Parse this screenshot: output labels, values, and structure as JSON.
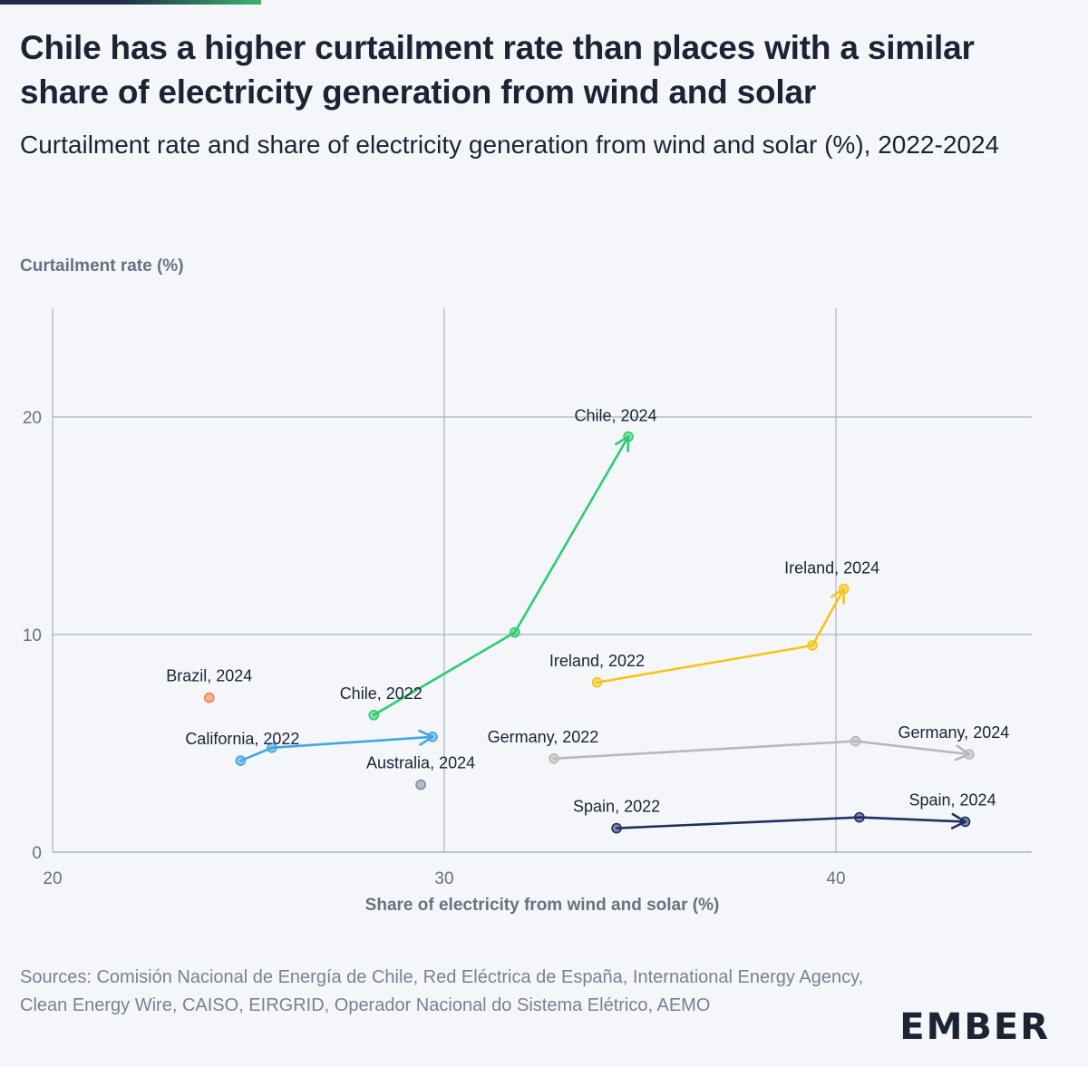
{
  "title": "Chile has a higher curtailment rate than places with a similar share of electricity generation from wind and solar",
  "subtitle": "Curtailment rate and share of electricity generation from wind and solar (%), 2022-2024",
  "sources": "Sources: Comisión Nacional de Energía de Chile, Red Eléctrica de España, International Energy Agency, Clean Energy Wire, CAISO, EIRGRID, Operador Nacional do Sistema Elétrico, AEMO",
  "logo": "EMBER",
  "chart_data": {
    "type": "scatter",
    "title": "Chile has a higher curtailment rate than places with a similar share of electricity generation from wind and solar",
    "xlabel": "Share of electricity from wind and solar (%)",
    "ylabel": "Curtailment rate (%)",
    "xlim": [
      20,
      45
    ],
    "ylim": [
      0,
      25
    ],
    "xticks": [
      20,
      30,
      40
    ],
    "yticks": [
      0,
      10,
      20
    ],
    "grid": true,
    "series": [
      {
        "name": "Chile",
        "color": "#2ecc71",
        "arrow": true,
        "points": [
          [
            28.2,
            6.3
          ],
          [
            31.8,
            10.1
          ],
          [
            34.7,
            19.1
          ]
        ],
        "labels": [
          {
            "text": "Chile, 2022",
            "at": 0
          },
          {
            "text": "Chile, 2024",
            "at": 2
          }
        ]
      },
      {
        "name": "Ireland",
        "color": "#f5c518",
        "arrow": true,
        "points": [
          [
            33.9,
            7.8
          ],
          [
            39.4,
            9.5
          ],
          [
            40.2,
            12.1
          ]
        ],
        "labels": [
          {
            "text": "Ireland, 2022",
            "at": 0
          },
          {
            "text": "Ireland, 2024",
            "at": 2
          }
        ]
      },
      {
        "name": "California",
        "color": "#3fa7e0",
        "arrow": true,
        "points": [
          [
            24.8,
            4.2
          ],
          [
            25.6,
            4.8
          ],
          [
            29.7,
            5.3
          ]
        ],
        "labels": [
          {
            "text": "California, 2022",
            "at": 0
          }
        ]
      },
      {
        "name": "Germany",
        "color": "#b8b8b8",
        "arrow": true,
        "points": [
          [
            32.8,
            4.3
          ],
          [
            40.5,
            5.1
          ],
          [
            43.4,
            4.5
          ]
        ],
        "labels": [
          {
            "text": "Germany, 2022",
            "at": 0
          },
          {
            "text": "Germany, 2024",
            "at": 2
          }
        ]
      },
      {
        "name": "Spain",
        "color": "#1f3060",
        "arrow": true,
        "points": [
          [
            34.4,
            1.1
          ],
          [
            40.6,
            1.6
          ],
          [
            43.3,
            1.4
          ]
        ],
        "labels": [
          {
            "text": "Spain, 2022",
            "at": 0
          },
          {
            "text": "Spain, 2024",
            "at": 2
          }
        ]
      },
      {
        "name": "Brazil",
        "color": "#f07f4a",
        "arrow": false,
        "points": [
          [
            24.0,
            7.1
          ]
        ],
        "labels": [
          {
            "text": "Brazil, 2024",
            "at": 0
          }
        ]
      },
      {
        "name": "Australia",
        "color": "#7f8ca0",
        "arrow": false,
        "points": [
          [
            29.4,
            3.1
          ]
        ],
        "labels": [
          {
            "text": "Australia, 2024",
            "at": 0
          }
        ]
      }
    ]
  }
}
